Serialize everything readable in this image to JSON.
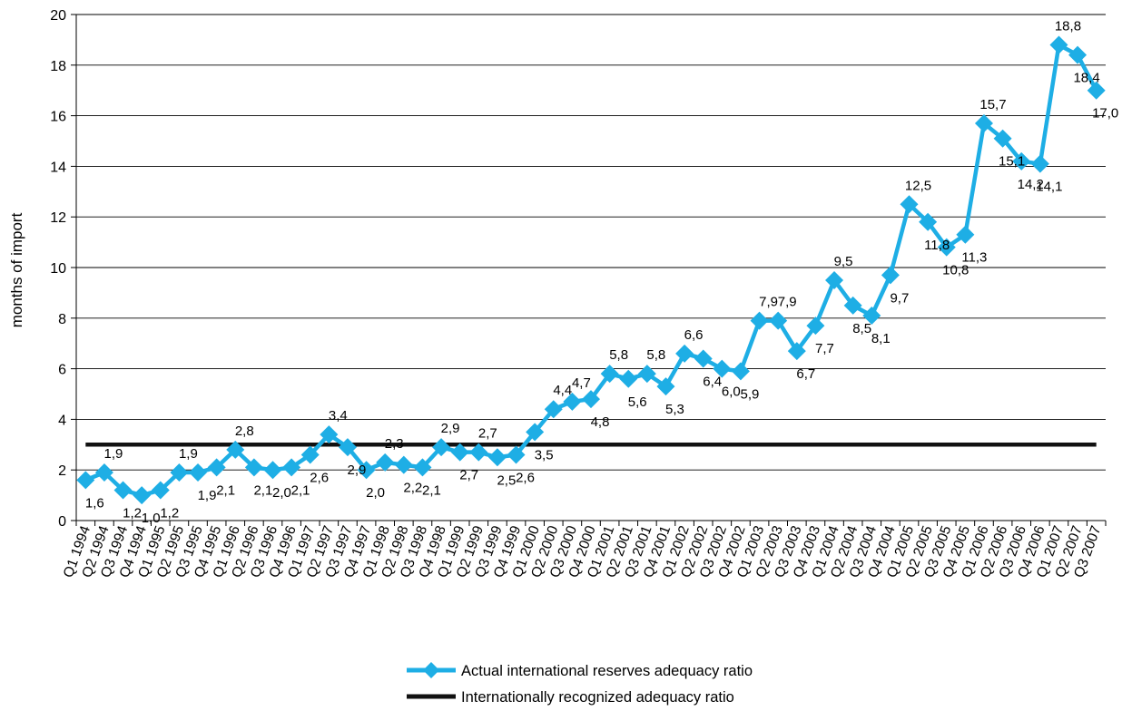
{
  "chart_data": {
    "type": "line",
    "title": "",
    "xlabel": "",
    "ylabel": "months of import",
    "ylim": [
      0,
      20
    ],
    "yticks": [
      0,
      2,
      4,
      6,
      8,
      10,
      12,
      14,
      16,
      18,
      20
    ],
    "grid": "horizontal",
    "legend_position": "bottom",
    "categories": [
      "Q1 1994",
      "Q2 1994",
      "Q3 1994",
      "Q4 1994",
      "Q1 1995",
      "Q2 1995",
      "Q3 1995",
      "Q4 1995",
      "Q1 1996",
      "Q2 1996",
      "Q3 1996",
      "Q4 1996",
      "Q1 1997",
      "Q2 1997",
      "Q3 1997",
      "Q4 1997",
      "Q1 1998",
      "Q2 1998",
      "Q3 1998",
      "Q4 1998",
      "Q1 1999",
      "Q2 1999",
      "Q3 1999",
      "Q4 1999",
      "Q1 2000",
      "Q2 2000",
      "Q3 2000",
      "Q4 2000",
      "Q1 2001",
      "Q2 2001",
      "Q3 2001",
      "Q4 2001",
      "Q1 2002",
      "Q2 2002",
      "Q3 2002",
      "Q4 2002",
      "Q1 2003",
      "Q2 2003",
      "Q3 2003",
      "Q4 2003",
      "Q1 2004",
      "Q2 2004",
      "Q3 2004",
      "Q4 2004",
      "Q1 2005",
      "Q2 2005",
      "Q3 2005",
      "Q4 2005",
      "Q1 2006",
      "Q2 2006",
      "Q3 2006",
      "Q4 2006",
      "Q1 2007",
      "Q2 2007",
      "Q3 2007"
    ],
    "series": [
      {
        "name": "Actual international reserves adequacy ratio",
        "color": "#1eaee5",
        "marker": "diamond",
        "values": [
          1.6,
          1.9,
          1.2,
          1.0,
          1.2,
          1.9,
          1.9,
          2.1,
          2.8,
          2.1,
          2.0,
          2.1,
          2.6,
          3.4,
          2.9,
          2.0,
          2.3,
          2.2,
          2.1,
          2.9,
          2.7,
          2.7,
          2.5,
          2.6,
          3.5,
          4.4,
          4.7,
          4.8,
          5.8,
          5.6,
          5.8,
          5.3,
          6.6,
          6.4,
          6.0,
          5.9,
          7.9,
          7.9,
          6.7,
          7.7,
          9.5,
          8.5,
          8.1,
          9.7,
          12.5,
          11.8,
          10.8,
          11.3,
          15.7,
          15.1,
          14.2,
          14.1,
          18.8,
          18.4,
          17.0
        ],
        "labels": [
          "1,6",
          "1,9",
          "1,2",
          "1,0",
          "1,2",
          "1,9",
          "1,9",
          "2,1",
          "2,8",
          "2,1",
          "2,0",
          "2,1",
          "2,6",
          "3,4",
          "2,9",
          "2,0",
          "2,3",
          "2,2",
          "2,1",
          "2,9",
          "2,7",
          "2,7",
          "2,5",
          "2,6",
          "3,5",
          "4,4",
          "4,7",
          "4,8",
          "5,8",
          "5,6",
          "5,8",
          "5,3",
          "6,6",
          "6,4",
          "6,0",
          "5,9",
          "7,9",
          "7,9",
          "6,7",
          "7,7",
          "9,5",
          "8,5",
          "8,1",
          "9,7",
          "12,5",
          "11,8",
          "10,8",
          "11,3",
          "15,7",
          "15,1",
          "14,2",
          "14,1",
          "18,8",
          "18,4",
          "17,0"
        ]
      },
      {
        "name": "Internationally recognized adequacy ratio",
        "color": "#111111",
        "marker": "none",
        "constant": 3
      }
    ]
  }
}
